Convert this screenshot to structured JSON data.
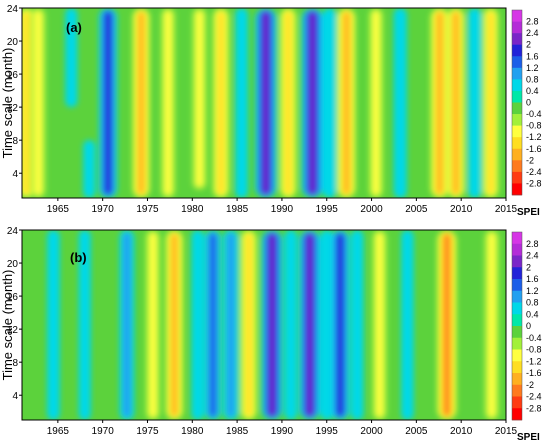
{
  "figure": {
    "ylabel": "Time scale (month)",
    "colorbar_label": "SPEI"
  },
  "chart_data": [
    {
      "type": "heatmap",
      "panel_label": "(a)",
      "xlabel": "",
      "ylabel": "Time scale (month)",
      "x_ticks": [
        1965,
        1970,
        1975,
        1980,
        1985,
        1990,
        1995,
        2000,
        2005,
        2010,
        2015
      ],
      "y_ticks": [
        4,
        8,
        12,
        16,
        20,
        24
      ],
      "xlim": [
        1961,
        2015
      ],
      "ylim": [
        1,
        24
      ],
      "grid": false,
      "legend": "colorbar-right",
      "colorbar_title": "SPEI",
      "colorbar_levels": [
        2.8,
        2.4,
        2,
        1.6,
        1.2,
        0.8,
        0.4,
        0,
        -0.4,
        -0.8,
        -1.2,
        -1.6,
        -2,
        -2.4,
        -2.8
      ],
      "spei_anomalies": [
        {
          "year": 1961.5,
          "spei": -1.4,
          "scale_range": [
            1,
            24
          ]
        },
        {
          "year": 1962.8,
          "spei": -1.0,
          "scale_range": [
            1,
            24
          ]
        },
        {
          "year": 1966.5,
          "spei": 0.4,
          "scale_range": [
            12,
            24
          ]
        },
        {
          "year": 1968.5,
          "spei": 0.4,
          "scale_range": [
            1,
            8
          ]
        },
        {
          "year": 1970.6,
          "spei": 1.6,
          "scale_range": [
            1,
            24
          ]
        },
        {
          "year": 1974.3,
          "spei": -1.6,
          "scale_range": [
            1,
            24
          ]
        },
        {
          "year": 1977.3,
          "spei": -0.9,
          "scale_range": [
            1,
            24
          ]
        },
        {
          "year": 1980.8,
          "spei": -0.9,
          "scale_range": [
            2,
            24
          ]
        },
        {
          "year": 1983.2,
          "spei": -1.4,
          "scale_range": [
            1,
            24
          ]
        },
        {
          "year": 1985.5,
          "spei": 0.5,
          "scale_range": [
            1,
            24
          ]
        },
        {
          "year": 1988.2,
          "spei": 2.2,
          "scale_range": [
            1,
            24
          ]
        },
        {
          "year": 1990.7,
          "spei": -1.4,
          "scale_range": [
            1,
            24
          ]
        },
        {
          "year": 1993.4,
          "spei": 2.2,
          "scale_range": [
            1,
            24
          ]
        },
        {
          "year": 1995.3,
          "spei": 0.6,
          "scale_range": [
            1,
            24
          ]
        },
        {
          "year": 1997.2,
          "spei": -1.8,
          "scale_range": [
            1,
            24
          ]
        },
        {
          "year": 2000.5,
          "spei": -0.9,
          "scale_range": [
            1,
            24
          ]
        },
        {
          "year": 2003.2,
          "spei": 0.6,
          "scale_range": [
            1,
            24
          ]
        },
        {
          "year": 2007.6,
          "spei": -1.8,
          "scale_range": [
            1,
            24
          ]
        },
        {
          "year": 2009.4,
          "spei": -1.6,
          "scale_range": [
            1,
            24
          ]
        },
        {
          "year": 2011.5,
          "spei": 0.6,
          "scale_range": [
            1,
            24
          ]
        },
        {
          "year": 2013.3,
          "spei": -1.2,
          "scale_range": [
            1,
            24
          ]
        }
      ]
    },
    {
      "type": "heatmap",
      "panel_label": "(b)",
      "xlabel": "",
      "ylabel": "Time scale (month)",
      "x_ticks": [
        1965,
        1970,
        1975,
        1980,
        1985,
        1990,
        1995,
        2000,
        2005,
        2010,
        2015
      ],
      "y_ticks": [
        4,
        8,
        12,
        16,
        20,
        24
      ],
      "xlim": [
        1961,
        2015
      ],
      "ylim": [
        1,
        24
      ],
      "grid": false,
      "legend": "colorbar-right",
      "colorbar_title": "SPEI",
      "colorbar_levels": [
        2.8,
        2.4,
        2,
        1.6,
        1.2,
        0.8,
        0.4,
        0,
        -0.4,
        -0.8,
        -1.2,
        -1.6,
        -2,
        -2.4,
        -2.8
      ],
      "spei_anomalies": [
        {
          "year": 1964.5,
          "spei": 0.5,
          "scale_range": [
            1,
            24
          ]
        },
        {
          "year": 1968.0,
          "spei": 0.4,
          "scale_range": [
            1,
            24
          ]
        },
        {
          "year": 1972.7,
          "spei": 0.9,
          "scale_range": [
            1,
            24
          ]
        },
        {
          "year": 1975.6,
          "spei": -0.9,
          "scale_range": [
            1,
            24
          ]
        },
        {
          "year": 1978.0,
          "spei": -1.6,
          "scale_range": [
            1,
            24
          ]
        },
        {
          "year": 1980.6,
          "spei": 0.5,
          "scale_range": [
            1,
            24
          ]
        },
        {
          "year": 1982.3,
          "spei": 1.2,
          "scale_range": [
            1,
            24
          ]
        },
        {
          "year": 1984.3,
          "spei": 1.0,
          "scale_range": [
            1,
            24
          ]
        },
        {
          "year": 1986.3,
          "spei": -1.3,
          "scale_range": [
            1,
            24
          ]
        },
        {
          "year": 1988.9,
          "spei": 2.1,
          "scale_range": [
            1,
            24
          ]
        },
        {
          "year": 1991.0,
          "spei": 0.5,
          "scale_range": [
            1,
            24
          ]
        },
        {
          "year": 1993.1,
          "spei": 2.1,
          "scale_range": [
            1,
            24
          ]
        },
        {
          "year": 1995.0,
          "spei": 0.5,
          "scale_range": [
            1,
            24
          ]
        },
        {
          "year": 1996.5,
          "spei": 1.6,
          "scale_range": [
            1,
            24
          ]
        },
        {
          "year": 1998.4,
          "spei": 0.5,
          "scale_range": [
            1,
            24
          ]
        },
        {
          "year": 2000.9,
          "spei": -0.9,
          "scale_range": [
            1,
            24
          ]
        },
        {
          "year": 2004.0,
          "spei": 0.5,
          "scale_range": [
            1,
            24
          ]
        },
        {
          "year": 2008.4,
          "spei": -2.0,
          "scale_range": [
            1,
            24
          ]
        },
        {
          "year": 2013.4,
          "spei": -0.9,
          "scale_range": [
            1,
            24
          ]
        }
      ]
    }
  ]
}
